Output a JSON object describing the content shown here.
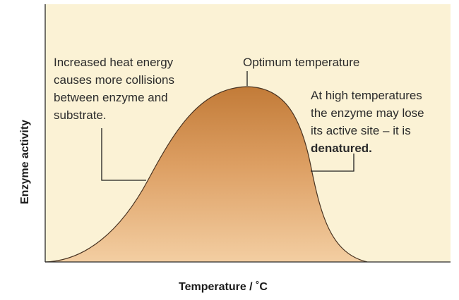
{
  "labels": {
    "y_axis": "Enzyme activity",
    "x_axis": "Temperature / ˚C"
  },
  "annotations": {
    "rising": {
      "lines": [
        "Increased heat energy",
        "causes more collisions",
        "between enzyme and",
        "substrate."
      ]
    },
    "optimum": {
      "text": "Optimum temperature"
    },
    "falling": {
      "lines": [
        "At high temperatures",
        "the enzyme may lose",
        "its active site – it is"
      ],
      "bold_line": "denatured."
    }
  },
  "colors": {
    "plot_background": "#fbf2d5",
    "curve_top": "#c98540",
    "curve_bottom": "#f2c99a"
  }
}
